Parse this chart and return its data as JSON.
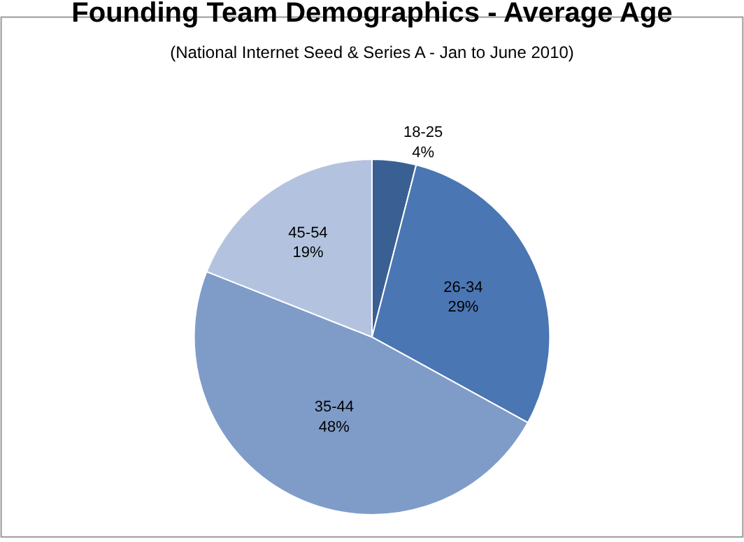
{
  "chart_data": {
    "type": "pie",
    "title": "Founding Team Demographics - Average Age",
    "subtitle": "(National Internet Seed & Series A - Jan to June 2010)",
    "categories": [
      "18-25",
      "26-34",
      "35-44",
      "45-54"
    ],
    "values": [
      4,
      29,
      48,
      19
    ],
    "value_labels": [
      "4%",
      "29%",
      "48%",
      "19%"
    ],
    "colors": [
      "#3a5f93",
      "#4a76b3",
      "#7f9cc9",
      "#b3c3df"
    ],
    "legend": false
  }
}
